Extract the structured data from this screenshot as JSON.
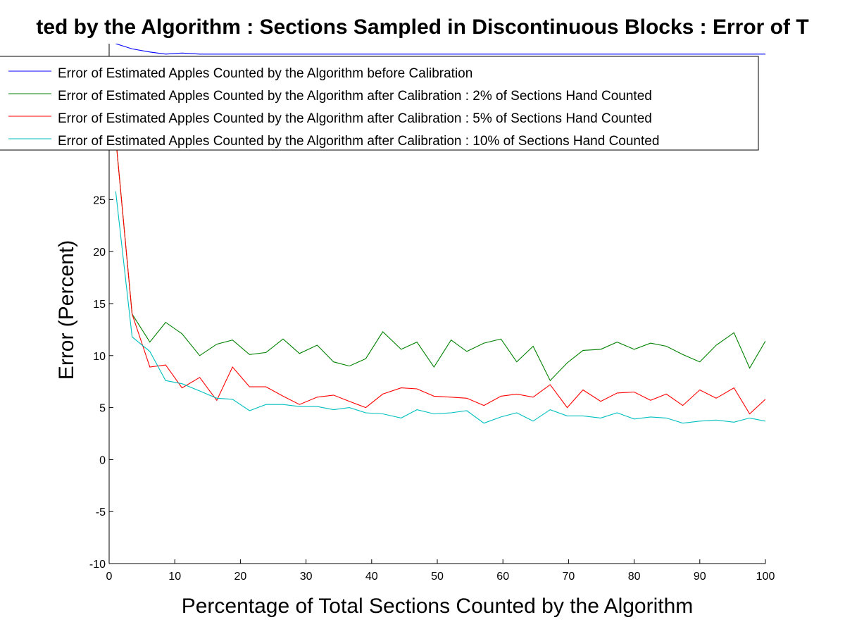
{
  "chart_data": {
    "type": "line",
    "title": "ted by the Algorithm : Sections Sampled in Discontinuous Blocks : Error of T",
    "xlabel": "Percentage of Total Sections Counted by the Algorithm",
    "ylabel": "Error (Percent)",
    "xlim": [
      0,
      100
    ],
    "ylim": [
      -10,
      40
    ],
    "xticks": [
      0,
      10,
      20,
      30,
      40,
      50,
      60,
      70,
      80,
      90,
      100
    ],
    "yticks": [
      -10,
      -5,
      0,
      5,
      10,
      15,
      20,
      25
    ],
    "grid": false,
    "legend_position": "top",
    "x": [
      1.0,
      3.5,
      6.2,
      8.6,
      11.1,
      13.8,
      16.4,
      18.8,
      21.4,
      23.9,
      26.5,
      29.0,
      31.7,
      34.2,
      36.6,
      39.1,
      41.7,
      44.5,
      46.9,
      49.5,
      52.1,
      54.5,
      57.1,
      59.7,
      62.1,
      64.6,
      67.2,
      69.8,
      72.2,
      74.9,
      77.4,
      80.0,
      82.5,
      84.9,
      87.4,
      90.0,
      92.5,
      95.2,
      97.6,
      100.0
    ],
    "series": [
      {
        "name": "Error of Estimated Apples Counted by the Algorithm before Calibration",
        "color": "#0000ff",
        "values": [
          40,
          39.5,
          39.2,
          39.0,
          39.1,
          39.0,
          39.0,
          39.0,
          39.0,
          39.0,
          39.0,
          39.0,
          39.0,
          39.0,
          39.0,
          39.0,
          39.0,
          39.0,
          39.0,
          39.0,
          39.0,
          39.0,
          39.0,
          39.0,
          39.0,
          39.0,
          39.0,
          39.0,
          39.0,
          39.0,
          39.0,
          39.0,
          39.0,
          39.0,
          39.0,
          39.0,
          39.0,
          39.0,
          39.0,
          39.0
        ]
      },
      {
        "name": "Error of Estimated Apples Counted by the Algorithm after Calibration : 2% of Sections Hand Counted",
        "color": "#008000",
        "values": [
          31.0,
          14.0,
          11.3,
          13.2,
          12.1,
          10.0,
          11.1,
          11.5,
          10.1,
          10.3,
          11.6,
          10.2,
          11.0,
          9.4,
          9.0,
          9.7,
          12.3,
          10.6,
          11.3,
          8.9,
          11.5,
          10.4,
          11.2,
          11.6,
          9.4,
          10.9,
          7.6,
          9.3,
          10.5,
          10.6,
          11.3,
          10.6,
          11.2,
          10.9,
          10.1,
          9.4,
          11.0,
          12.2,
          8.8,
          11.4
        ]
      },
      {
        "name": "Error of Estimated Apples Counted by the Algorithm after Calibration : 5% of Sections Hand Counted",
        "color": "#ff0000",
        "values": [
          31.0,
          14.0,
          8.9,
          9.1,
          6.9,
          7.9,
          5.7,
          8.9,
          7.0,
          7.0,
          6.1,
          5.3,
          6.0,
          6.2,
          5.6,
          5.0,
          6.3,
          6.9,
          6.8,
          6.1,
          6.0,
          5.9,
          5.2,
          6.1,
          6.3,
          6.0,
          7.2,
          5.0,
          6.7,
          5.6,
          6.4,
          6.5,
          5.7,
          6.3,
          5.2,
          6.7,
          5.9,
          6.9,
          4.4,
          5.8
        ]
      },
      {
        "name": "Error of Estimated Apples Counted by the Algorithm after Calibration : 10% of Sections Hand Counted",
        "color": "#00bfbf",
        "values": [
          25.8,
          11.8,
          10.4,
          7.6,
          7.3,
          6.6,
          5.9,
          5.8,
          4.7,
          5.3,
          5.3,
          5.1,
          5.1,
          4.8,
          5.0,
          4.5,
          4.4,
          4.0,
          4.8,
          4.4,
          4.5,
          4.7,
          3.5,
          4.1,
          4.5,
          3.7,
          4.8,
          4.2,
          4.2,
          4.0,
          4.5,
          3.9,
          4.1,
          4.0,
          3.5,
          3.7,
          3.8,
          3.6,
          4.0,
          3.7
        ]
      }
    ]
  }
}
